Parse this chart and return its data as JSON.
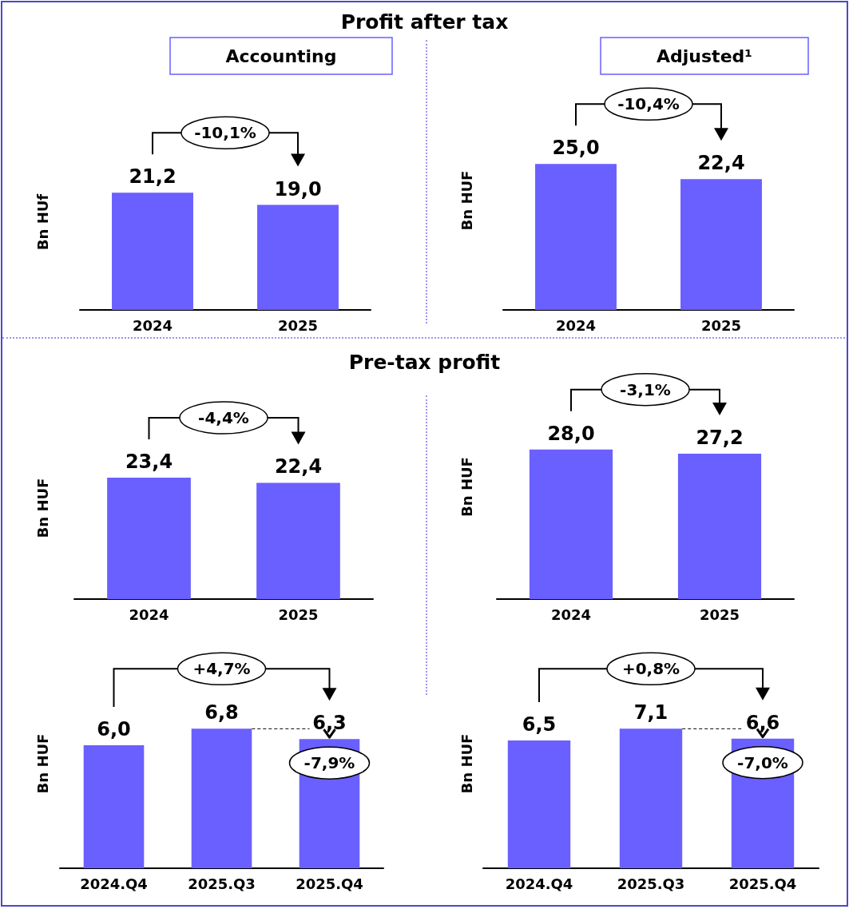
{
  "chart_data": [
    {
      "type": "other",
      "title": "Profit after tax"
    },
    {
      "type": "bar",
      "title": "Accounting",
      "ylabel": "Bn HUf",
      "categories": [
        "2024",
        "2025"
      ],
      "values": [
        21.2,
        19.0
      ],
      "value_labels": [
        "21,2",
        "19,0"
      ],
      "color": "#6a5fff",
      "annotations": [
        "-10,1%"
      ]
    },
    {
      "type": "bar",
      "title": "Adjusted¹",
      "ylabel": "Bn HUF",
      "categories": [
        "2024",
        "2025"
      ],
      "values": [
        25.0,
        22.4
      ],
      "value_labels": [
        "25,0",
        "22,4"
      ],
      "color": "#6a5fff",
      "annotations": [
        "-10,4%"
      ]
    },
    {
      "type": "other",
      "title": "Pre-tax profit"
    },
    {
      "type": "bar",
      "ylabel": "Bn HUF",
      "categories": [
        "2024",
        "2025"
      ],
      "values": [
        23.4,
        22.4
      ],
      "value_labels": [
        "23,4",
        "22,4"
      ],
      "color": "#6a5fff",
      "annotations": [
        "-4,4%"
      ]
    },
    {
      "type": "bar",
      "ylabel": "Bn HUF",
      "categories": [
        "2024",
        "2025"
      ],
      "values": [
        28.0,
        27.2
      ],
      "value_labels": [
        "28,0",
        "27,2"
      ],
      "color": "#6a5fff",
      "annotations": [
        "-3,1%"
      ]
    },
    {
      "type": "bar",
      "ylabel": "Bn HUF",
      "categories": [
        "2024.Q4",
        "2025.Q3",
        "2025.Q4"
      ],
      "values": [
        6.0,
        6.8,
        6.3
      ],
      "value_labels": [
        "6,0",
        "6,8",
        "6,3"
      ],
      "color": "#6a5fff",
      "annotations": [
        "+4,7%",
        "-7,9%"
      ]
    },
    {
      "type": "bar",
      "ylabel": "Bn HUF",
      "categories": [
        "2024.Q4",
        "2025.Q3",
        "2025.Q4"
      ],
      "values": [
        6.5,
        7.1,
        6.6
      ],
      "value_labels": [
        "6,5",
        "7,1",
        "6,6"
      ],
      "color": "#6a5fff",
      "annotations": [
        "+0,8%",
        "-7,0%"
      ]
    }
  ]
}
